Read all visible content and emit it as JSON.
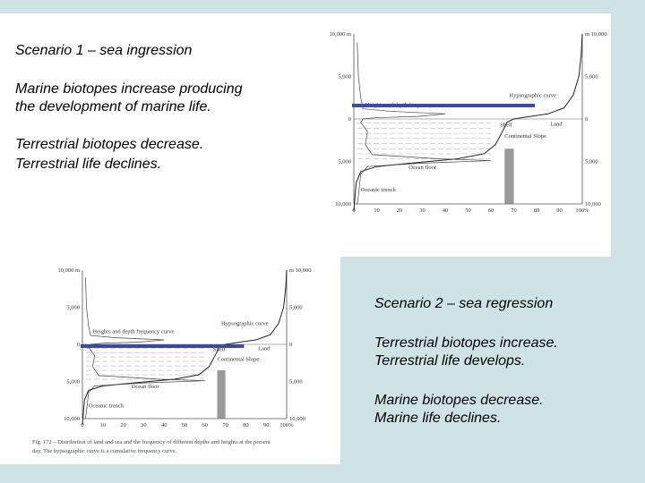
{
  "scenario_1": {
    "title": "Scenario 1 – sea ingression",
    "paragraphs": [
      [
        "Marine biotopes increase producing",
        "the development of marine life."
      ],
      [
        "Terrestrial biotopes decrease.",
        "Terrestrial life declines."
      ]
    ]
  },
  "scenario_2": {
    "title": "Scenario 2 – sea regression",
    "paragraphs": [
      [
        "Terrestrial biotopes increase.",
        "Terrestrial life develops."
      ],
      [
        "Marine biotopes decrease.",
        "Marine life declines."
      ]
    ]
  },
  "figure": {
    "left_ticks": [
      "10,000 m",
      "5,000",
      "0",
      "5,000",
      "10,000"
    ],
    "right_ticks": [
      "m 10,000",
      "5,000",
      "0",
      "5,000",
      "10,000"
    ],
    "x_ticks": [
      "0",
      "10",
      "20",
      "30",
      "40",
      "50",
      "60",
      "70",
      "80",
      "90",
      "100%"
    ],
    "labels": {
      "hypsographic": "Hypsographic curve",
      "frequency": "Heights and depth frequency curve",
      "land": "Land",
      "shelf": "Shelf",
      "slope": "Continental Slope",
      "floor": "Ocean floor",
      "trench": "Oceanic trench"
    },
    "caption": [
      "Fig. 172 – Distribution of land and sea and the frequency of different depths and heights at the present",
      "day. The hypsographic curve is a cumulative frequency curve."
    ]
  }
}
